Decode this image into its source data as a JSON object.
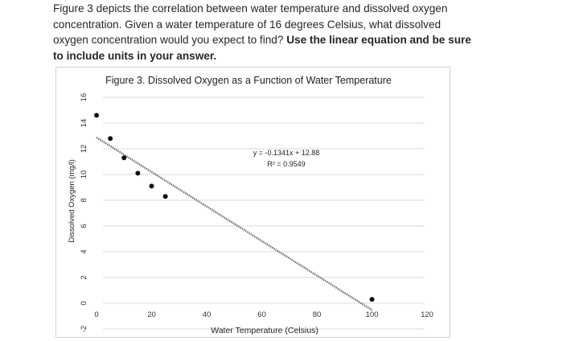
{
  "question": {
    "text": "Figure 3 depicts the correlation between water temperature and dissolved oxygen concentration. Given a water temperature of 16 degrees Celsius, what dissolved oxygen concentration would you expect to find?",
    "bold": "Use the linear equation and be sure to include units in your answer."
  },
  "chart_data": {
    "type": "scatter",
    "title": "Figure 3. Dissolved Oxygen as a Function of Water Temperature",
    "xlabel": "Water Temperature (Celsius)",
    "ylabel": "Dissolved Oxygen (mg/l)",
    "xlim": [
      0,
      120
    ],
    "ylim": [
      -2,
      16
    ],
    "x_ticks": [
      "0",
      "20",
      "40",
      "60",
      "80",
      "100",
      "120"
    ],
    "y_ticks": [
      "-2",
      "0",
      "2",
      "4",
      "6",
      "8",
      "10",
      "12",
      "14",
      "16"
    ],
    "grid": true,
    "points": [
      {
        "x": 0,
        "y": 14.6
      },
      {
        "x": 5,
        "y": 12.8
      },
      {
        "x": 10,
        "y": 11.3
      },
      {
        "x": 15,
        "y": 10.1
      },
      {
        "x": 20,
        "y": 9.1
      },
      {
        "x": 25,
        "y": 8.3
      },
      {
        "x": 100,
        "y": 0.3
      }
    ],
    "trendline": {
      "slope": -0.1341,
      "intercept": 12.88,
      "x_range": [
        0,
        100
      ],
      "equation_label": "y = -0.1341x + 12.88",
      "r2_label": "R² = 0.9549",
      "style": "dotted",
      "color": "#5a5a5a"
    },
    "point_color": "#111111"
  }
}
